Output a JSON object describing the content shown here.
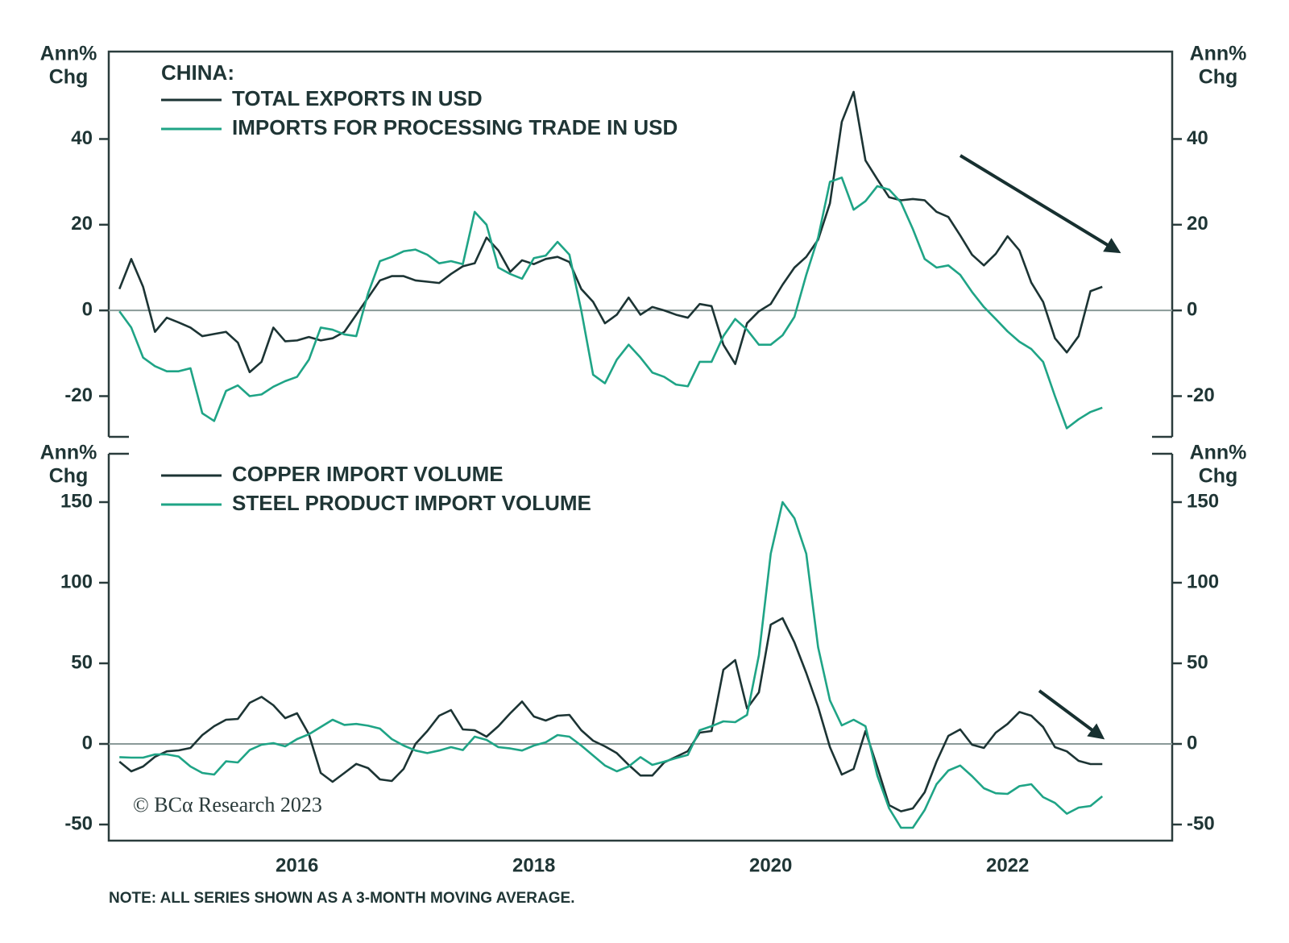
{
  "chart_data": [
    {
      "type": "line",
      "legend_title": "CHINA:",
      "ylabel_lines": [
        "Ann%",
        "Chg"
      ],
      "y2label_lines": [
        "Ann%",
        "Chg"
      ],
      "xlim": [
        2014.41,
        2023.39
      ],
      "ylim": [
        -29.5,
        60.4
      ],
      "yticks": [
        -20,
        0,
        20,
        40
      ],
      "y2lim": [
        -29.5,
        60.4
      ],
      "y2ticks": [
        -20,
        0,
        20,
        40
      ],
      "hline": 0,
      "x": [
        2014.5,
        2014.6,
        2014.7,
        2014.8,
        2014.9,
        2015.0,
        2015.1,
        2015.2,
        2015.3,
        2015.4,
        2015.5,
        2015.6,
        2015.7,
        2015.8,
        2015.9,
        2016.0,
        2016.1,
        2016.2,
        2016.3,
        2016.4,
        2016.5,
        2016.6,
        2016.7,
        2016.8,
        2016.9,
        2017.0,
        2017.1,
        2017.2,
        2017.3,
        2017.4,
        2017.5,
        2017.6,
        2017.7,
        2017.8,
        2017.9,
        2018.0,
        2018.1,
        2018.2,
        2018.3,
        2018.4,
        2018.5,
        2018.6,
        2018.7,
        2018.8,
        2018.9,
        2019.0,
        2019.1,
        2019.2,
        2019.3,
        2019.4,
        2019.5,
        2019.6,
        2019.7,
        2019.8,
        2019.9,
        2020.0,
        2020.1,
        2020.2,
        2020.3,
        2020.4,
        2020.5,
        2020.6,
        2020.7,
        2020.8,
        2020.9,
        2021.0,
        2021.1,
        2021.2,
        2021.3,
        2021.4,
        2021.5,
        2021.6,
        2021.7,
        2021.8,
        2021.9,
        2022.0,
        2022.1,
        2022.2,
        2022.3,
        2022.4,
        2022.5,
        2022.6,
        2022.7,
        2022.8
      ],
      "series": [
        {
          "name": "TOTAL EXPORTS IN USD",
          "color": "#1c3434",
          "values": [
            5,
            12,
            5.5,
            -5,
            -1.7,
            -2.8,
            -4,
            -6,
            -5.5,
            -5,
            -7.5,
            -14.4,
            -12,
            -4,
            -7.2,
            -7,
            -6.2,
            -7,
            -6.5,
            -5,
            -1,
            3,
            7,
            8,
            8,
            7,
            6.7,
            6.4,
            8.5,
            10.3,
            11,
            17,
            14,
            9,
            11.7,
            10.8,
            12,
            12.5,
            11.3,
            5,
            2,
            -3,
            -1,
            3,
            -1,
            0.8,
            0,
            -1,
            -1.7,
            1.5,
            1,
            -8,
            -12.5,
            -3,
            -0.2,
            1.5,
            6,
            10,
            12.5,
            16.5,
            25,
            44,
            51,
            35,
            30.6,
            26.4,
            25.7,
            26,
            25.7,
            23,
            21.8,
            17.5,
            13,
            10.5,
            13.2,
            17.3,
            14,
            6.5,
            2,
            -6.5,
            -9.8,
            -6,
            4.5,
            5.5
          ]
        },
        {
          "name": "IMPORTS FOR PROCESSING TRADE IN USD",
          "color": "#1fa486",
          "values": [
            -0.2,
            -4,
            -11,
            -13,
            -14.2,
            -14.2,
            -13.5,
            -24,
            -25.8,
            -18.8,
            -17.5,
            -20,
            -19.6,
            -17.8,
            -16.5,
            -15.5,
            -11.5,
            -4,
            -4.5,
            -5.6,
            -6,
            4,
            11.5,
            12.5,
            13.8,
            14.2,
            13,
            11,
            11.5,
            10.8,
            23,
            20,
            10,
            8.5,
            7.4,
            12.2,
            12.8,
            16,
            13,
            0,
            -15,
            -17,
            -11.5,
            -8,
            -11,
            -14.5,
            -15.5,
            -17.3,
            -17.7,
            -12,
            -12,
            -6,
            -2,
            -4.5,
            -8,
            -8,
            -5.8,
            -1.5,
            8.3,
            17,
            30,
            31,
            23.5,
            25.5,
            29,
            28.2,
            25.2,
            19,
            12,
            10,
            10.5,
            8.3,
            4.3,
            0.8,
            -2,
            -4.9,
            -7.3,
            -9,
            -12,
            -20,
            -27.5,
            -25.4,
            -23.7,
            -22.7
          ]
        }
      ]
    },
    {
      "type": "line",
      "ylabel_lines": [
        "Ann%",
        "Chg"
      ],
      "y2label_lines": [
        "Ann%",
        "Chg"
      ],
      "xlim": [
        2014.41,
        2023.39
      ],
      "xticks": [
        2016,
        2018,
        2020,
        2022
      ],
      "ylim": [
        -60,
        180
      ],
      "yticks": [
        -50,
        0,
        50,
        100,
        150
      ],
      "y2lim": [
        -60,
        180
      ],
      "y2ticks": [
        -50,
        0,
        50,
        100,
        150
      ],
      "hline": 0,
      "source": "© BCα Research 2023",
      "note": "NOTE: ALL SERIES SHOWN AS A 3-MONTH MOVING AVERAGE.",
      "x": [
        2014.5,
        2014.6,
        2014.7,
        2014.8,
        2014.9,
        2015.0,
        2015.1,
        2015.2,
        2015.3,
        2015.4,
        2015.5,
        2015.6,
        2015.7,
        2015.8,
        2015.9,
        2016.0,
        2016.1,
        2016.2,
        2016.3,
        2016.4,
        2016.5,
        2016.6,
        2016.7,
        2016.8,
        2016.9,
        2017.0,
        2017.1,
        2017.2,
        2017.3,
        2017.4,
        2017.5,
        2017.6,
        2017.7,
        2017.8,
        2017.9,
        2018.0,
        2018.1,
        2018.2,
        2018.3,
        2018.4,
        2018.5,
        2018.6,
        2018.7,
        2018.8,
        2018.9,
        2019.0,
        2019.1,
        2019.2,
        2019.3,
        2019.4,
        2019.5,
        2019.6,
        2019.7,
        2019.8,
        2019.9,
        2020.0,
        2020.1,
        2020.2,
        2020.3,
        2020.4,
        2020.5,
        2020.6,
        2020.7,
        2020.8,
        2020.9,
        2021.0,
        2021.1,
        2021.2,
        2021.3,
        2021.4,
        2021.5,
        2021.6,
        2021.7,
        2021.8,
        2021.9,
        2022.0,
        2022.1,
        2022.2,
        2022.3,
        2022.4,
        2022.5,
        2022.6,
        2022.7,
        2022.8
      ],
      "series": [
        {
          "name": "COPPER IMPORT VOLUME",
          "color": "#1c3434",
          "values": [
            -11,
            -17,
            -14,
            -8,
            -4.6,
            -4,
            -2.5,
            5.5,
            11,
            15,
            15.5,
            25.5,
            29.2,
            24,
            16,
            19,
            6,
            -18,
            -23.5,
            -18,
            -12.4,
            -15,
            -22,
            -23,
            -15.5,
            0,
            8,
            17.5,
            21,
            9,
            8.5,
            4.5,
            11,
            19,
            26.3,
            17,
            14.5,
            17.5,
            18,
            8.5,
            2,
            -1.5,
            -5.7,
            -13,
            -19.6,
            -19.6,
            -11.5,
            -8,
            -4.5,
            7,
            8,
            46,
            52,
            22,
            32,
            74,
            78,
            63,
            44,
            23,
            -2,
            -19,
            -15.5,
            8,
            -14.4,
            -38,
            -41.8,
            -40,
            -30,
            -11,
            5,
            9,
            -0.5,
            -2.5,
            7,
            12.4,
            19.8,
            17.5,
            10.5,
            -2,
            -4.6,
            -10.5,
            -12.5,
            -12.5
          ]
        },
        {
          "name": "STEEL PRODUCT IMPORT VOLUME",
          "color": "#1fa486",
          "values": [
            -8.2,
            -8.5,
            -8.5,
            -6.5,
            -6.5,
            -7.8,
            -14,
            -18,
            -19,
            -10.8,
            -11.5,
            -3.8,
            -0.5,
            0.5,
            -1.5,
            3,
            6,
            10.5,
            15,
            11.8,
            12.4,
            11.3,
            9.5,
            3,
            -1,
            -4.1,
            -5.7,
            -4.1,
            -2,
            -3.8,
            4.5,
            2.5,
            -2,
            -2.8,
            -4.1,
            -1,
            1,
            5.5,
            4.5,
            -1,
            -7.2,
            -13.4,
            -17,
            -14,
            -8.2,
            -13,
            -11,
            -8.8,
            -6.8,
            8.5,
            11,
            14,
            13.5,
            18,
            55,
            118,
            150,
            140,
            118,
            60,
            27,
            11.5,
            15,
            11,
            -19.6,
            -40,
            -52,
            -52,
            -41,
            -25,
            -16.5,
            -13.4,
            -20,
            -27.5,
            -30.6,
            -31,
            -26.2,
            -25,
            -33,
            -36.6,
            -43.3,
            -39.5,
            -38.5,
            -32.5
          ]
        }
      ]
    }
  ]
}
